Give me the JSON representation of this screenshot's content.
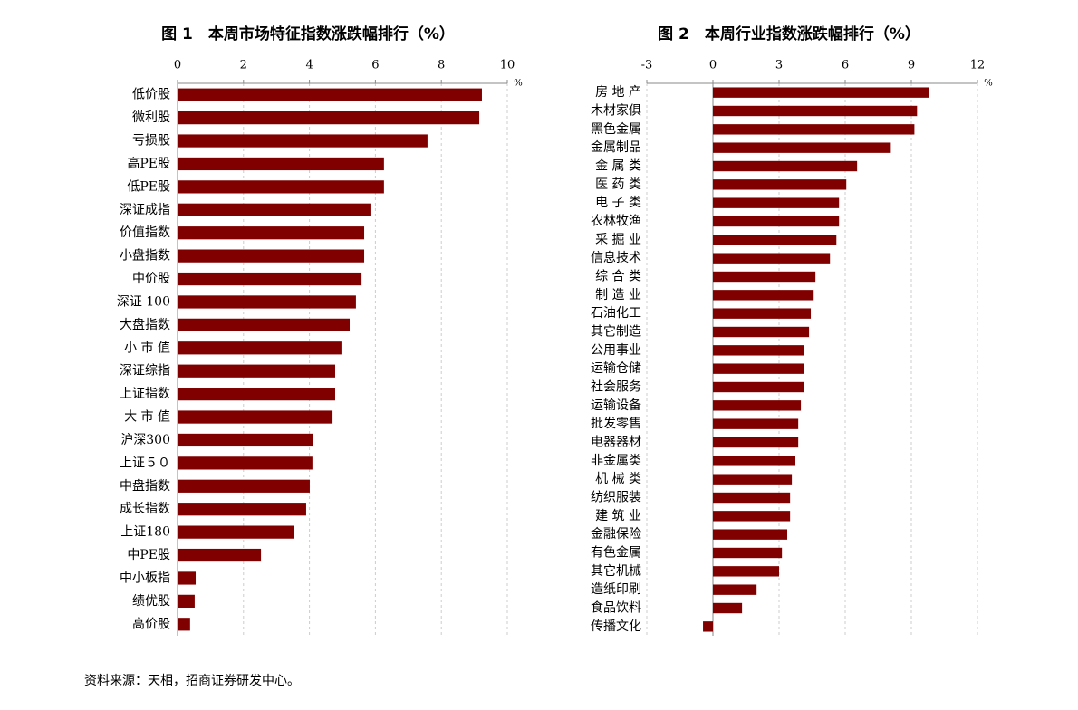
{
  "chart_data": [
    {
      "type": "bar",
      "orientation": "horizontal",
      "title": "图 1　本周市场特征指数涨跌幅排行（%）",
      "unit": "%",
      "color": "#800000",
      "grid": true,
      "categories": [
        "低价股",
        "微利股",
        "亏损股",
        "高PE股",
        "低PE股",
        "深证成指",
        "价值指数",
        "小盘指数",
        "中价股",
        "深证 100",
        "大盘指数",
        "小 市 值",
        "深证综指",
        "上证指数",
        "大 市 值",
        "沪深300",
        "上证５０",
        "中盘指数",
        "成长指数",
        "上证180",
        "中PE股",
        "中小板指",
        "绩优股",
        "高价股"
      ],
      "values": [
        9.23,
        9.15,
        7.58,
        6.26,
        6.26,
        5.85,
        5.66,
        5.66,
        5.58,
        5.41,
        5.22,
        4.97,
        4.78,
        4.78,
        4.7,
        4.12,
        4.09,
        4.01,
        3.9,
        3.52,
        2.53,
        0.55,
        0.52,
        0.38
      ],
      "xlim": [
        0,
        10
      ],
      "xticks": [
        0,
        2,
        4,
        6,
        8,
        10
      ]
    },
    {
      "type": "bar",
      "orientation": "horizontal",
      "title": "图 2　本周行业指数涨跌幅排行（%）",
      "unit": "%",
      "color": "#800000",
      "grid": true,
      "categories": [
        "房 地 产",
        "木材家俱",
        "黑色金属",
        "金属制品",
        "金 属 类",
        "医 药 类",
        "电 子 类",
        "农林牧渔",
        "采 掘 业",
        "信息技术",
        "综 合 类",
        "制 造 业",
        "石油化工",
        "其它制造",
        "公用事业",
        "运输仓储",
        "社会服务",
        "运输设备",
        "批发零售",
        "电器器材",
        "非金属类",
        "机 械 类",
        "纺织服装",
        "建 筑 业",
        "金融保险",
        "有色金属",
        "其它机械",
        "造纸印刷",
        "食品饮料",
        "传播文化"
      ],
      "values": [
        9.79,
        9.26,
        9.14,
        8.07,
        6.54,
        6.05,
        5.72,
        5.72,
        5.6,
        5.31,
        4.65,
        4.57,
        4.44,
        4.36,
        4.12,
        4.12,
        4.12,
        3.99,
        3.87,
        3.87,
        3.74,
        3.58,
        3.5,
        3.5,
        3.37,
        3.13,
        3.0,
        1.98,
        1.32,
        -0.45
      ],
      "xlim": [
        -3,
        12
      ],
      "xticks": [
        -3,
        0,
        3,
        6,
        9,
        12
      ]
    }
  ],
  "source": "资料来源：天相，招商证券研发中心。"
}
